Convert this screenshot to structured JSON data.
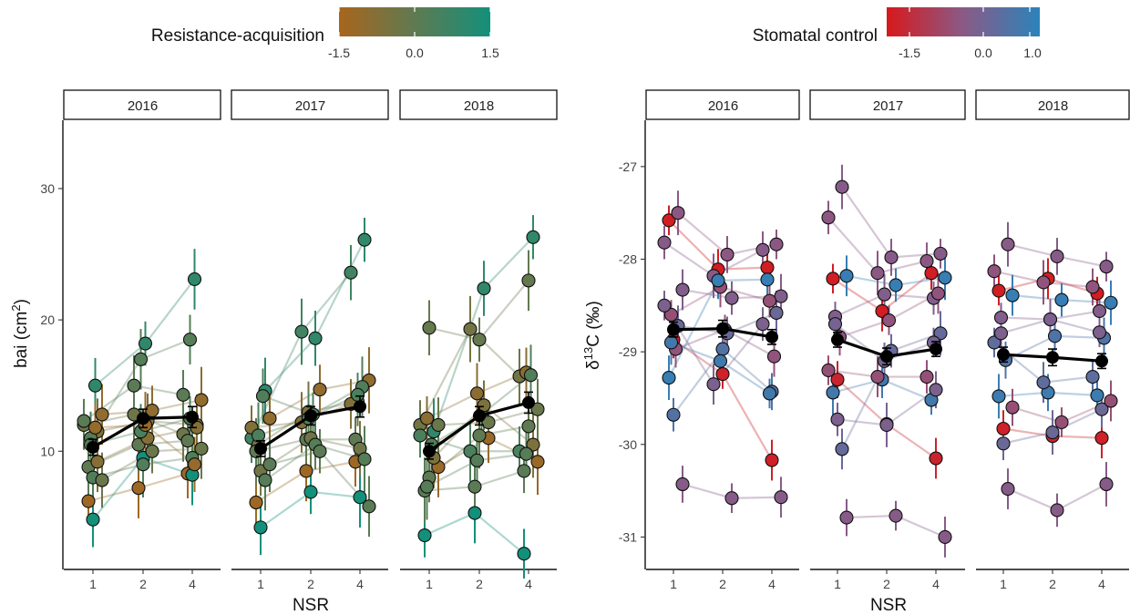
{
  "chart_data": [
    {
      "type": "scatter",
      "title": "",
      "xlabel": "NSR",
      "ylabel": "bai (cm²)",
      "ylabel_base": "bai (cm",
      "ylabel_sup": "2",
      "ylabel_close": ")",
      "x_ticks": [
        "1",
        "2",
        "4"
      ],
      "y_ticks": [
        10,
        20,
        30
      ],
      "ylim": [
        1,
        35.2
      ],
      "facets": [
        "2016",
        "2017",
        "2018"
      ],
      "legend": {
        "title": "Resistance-acquisition",
        "position": "top",
        "colors": [
          "#a8651d",
          "#5f7a52",
          "#13907a"
        ],
        "ticks": [
          "-1.5",
          "0.0",
          "1.5"
        ],
        "range": [
          -1.5,
          1.5
        ]
      },
      "means": {
        "2016": [
          10.3,
          12.5,
          12.6
        ],
        "2017": [
          10.2,
          12.7,
          13.4
        ],
        "2018": [
          10.0,
          12.7,
          13.7
        ]
      },
      "mean_errors": [
        0.6,
        0.7,
        0.8
      ],
      "series": {
        "2016": [
          {
            "v": [
              6.2,
              7.2,
              8.3
            ],
            "c": -1.3
          },
          {
            "v": [
              4.8,
              9.5,
              8.2
            ],
            "c": 1.5
          },
          {
            "v": [
              11.5,
              12.3,
              12.0
            ],
            "c": -0.5
          },
          {
            "v": [
              12.0,
              12.8,
              11.3
            ],
            "c": -0.3
          },
          {
            "v": [
              12.8,
              13.1,
              13.9
            ],
            "c": -1.0
          },
          {
            "v": [
              11.0,
              17.0,
              18.5
            ],
            "c": 0.2
          },
          {
            "v": [
              15.0,
              18.2,
              23.1
            ],
            "c": 0.9
          },
          {
            "v": [
              8.8,
              10.5,
              10.8
            ],
            "c": 0.0
          },
          {
            "v": [
              8.0,
              9.0,
              9.5
            ],
            "c": 0.3
          },
          {
            "v": [
              9.2,
              11.0,
              11.8
            ],
            "c": -0.8
          },
          {
            "v": [
              12.3,
              15.0,
              14.3
            ],
            "c": 0.1
          },
          {
            "v": [
              7.8,
              10.0,
              10.2
            ],
            "c": -0.2
          },
          {
            "v": [
              10.5,
              11.5,
              12.5
            ],
            "c": 0.4
          },
          {
            "v": [
              11.8,
              12.0,
              9.0
            ],
            "c": -1.1
          }
        ],
        "2017": [
          {
            "v": [
              6.1,
              8.5,
              9.2
            ],
            "c": -1.3
          },
          {
            "v": [
              4.2,
              6.9,
              6.5
            ],
            "c": 1.5
          },
          {
            "v": [
              14.6,
              18.6,
              26.1
            ],
            "c": 0.9
          },
          {
            "v": [
              11.0,
              19.1,
              23.6
            ],
            "c": 0.6
          },
          {
            "v": [
              12.5,
              14.7,
              15.4
            ],
            "c": -1.0
          },
          {
            "v": [
              10.5,
              13.0,
              13.8
            ],
            "c": -0.5
          },
          {
            "v": [
              14.2,
              12.8,
              14.9
            ],
            "c": 0.3
          },
          {
            "v": [
              10.0,
              10.9,
              10.9
            ],
            "c": 0.0
          },
          {
            "v": [
              8.5,
              11.0,
              10.2
            ],
            "c": -0.3
          },
          {
            "v": [
              7.8,
              10.5,
              9.4
            ],
            "c": 0.2
          },
          {
            "v": [
              11.8,
              12.2,
              13.6
            ],
            "c": -0.7
          },
          {
            "v": [
              9.0,
              10.0,
              5.8
            ],
            "c": 0.1
          },
          {
            "v": [
              11.2,
              12.5,
              14.3
            ],
            "c": 0.4
          }
        ],
        "2018": [
          {
            "v": [
              3.6,
              5.3,
              2.2
            ],
            "c": 1.5
          },
          {
            "v": [
              19.4,
              18.5,
              23.0
            ],
            "c": -0.1
          },
          {
            "v": [
              11.5,
              22.4,
              26.3
            ],
            "c": 0.9
          },
          {
            "v": [
              12.0,
              19.3,
              15.7
            ],
            "c": -0.4
          },
          {
            "v": [
              8.8,
              11.0,
              9.2
            ],
            "c": -1.2
          },
          {
            "v": [
              12.5,
              14.4,
              16.0
            ],
            "c": -0.9
          },
          {
            "v": [
              10.5,
              12.8,
              15.8
            ],
            "c": 0.3
          },
          {
            "v": [
              7.0,
              7.3,
              8.5
            ],
            "c": 0.1
          },
          {
            "v": [
              8.0,
              11.2,
              11.9
            ],
            "c": 0.0
          },
          {
            "v": [
              9.5,
              13.5,
              10.5
            ],
            "c": -0.6
          },
          {
            "v": [
              11.2,
              10.0,
              10.0
            ],
            "c": 0.4
          },
          {
            "v": [
              12.0,
              12.2,
              13.2
            ],
            "c": -0.2
          },
          {
            "v": [
              7.3,
              9.3,
              9.8
            ],
            "c": 0.2
          }
        ]
      }
    },
    {
      "type": "scatter",
      "title": "",
      "xlabel": "NSR",
      "ylabel": "δ13C (‰)",
      "ylabel_delta": "δ",
      "ylabel_sup": "13",
      "ylabel_rest": "C (‰)",
      "x_ticks": [
        "1",
        "2",
        "4"
      ],
      "y_ticks": [
        -27,
        -28,
        -29,
        -30,
        -31
      ],
      "ylim": [
        -31.35,
        -26.5
      ],
      "facets": [
        "2016",
        "2017",
        "2018"
      ],
      "legend": {
        "title": "Stomatal control",
        "position": "top",
        "colors": [
          "#d7191c",
          "#8a5a86",
          "#2b83ba"
        ],
        "ticks": [
          "-1.5",
          "0.0",
          "1.0"
        ],
        "range": [
          -2.0,
          1.3
        ]
      },
      "means": {
        "2016": [
          -28.76,
          -28.75,
          -28.84
        ],
        "2017": [
          -28.87,
          -29.05,
          -28.97
        ],
        "2018": [
          -29.03,
          -29.06,
          -29.1
        ]
      },
      "mean_errors": [
        0.08,
        0.09,
        0.08
      ],
      "series": {
        "2016": [
          {
            "v": [
              -27.58,
              -28.11,
              -28.09
            ],
            "c": -1.9
          },
          {
            "v": [
              -28.87,
              -29.24,
              -30.17
            ],
            "c": -1.8
          },
          {
            "v": [
              -27.5,
              -27.95,
              -27.84
            ],
            "c": -0.4
          },
          {
            "v": [
              -27.82,
              -28.18,
              -27.9
            ],
            "c": -0.3
          },
          {
            "v": [
              -28.33,
              -28.42,
              -28.4
            ],
            "c": -0.2
          },
          {
            "v": [
              -28.6,
              -28.3,
              -28.45
            ],
            "c": -0.6
          },
          {
            "v": [
              -28.97,
              -28.76,
              -29.05
            ],
            "c": -0.5
          },
          {
            "v": [
              -29.28,
              -28.23,
              -28.22
            ],
            "c": 1.1
          },
          {
            "v": [
              -29.68,
              -28.97,
              -29.43
            ],
            "c": 0.6
          },
          {
            "v": [
              -28.72,
              -28.8,
              -28.58
            ],
            "c": 0.2
          },
          {
            "v": [
              -28.5,
              -29.35,
              -28.7
            ],
            "c": -0.1
          },
          {
            "v": [
              -30.43,
              -30.58,
              -30.57
            ],
            "c": -0.3
          },
          {
            "v": [
              -28.9,
              -29.1,
              -29.45
            ],
            "c": 0.9
          }
        ],
        "2017": [
          {
            "v": [
              -28.21,
              -28.56,
              -28.15
            ],
            "c": -1.9
          },
          {
            "v": [
              -29.3,
              -29.78,
              -30.15
            ],
            "c": -1.7
          },
          {
            "v": [
              -27.22,
              -27.98,
              -27.94
            ],
            "c": -0.3
          },
          {
            "v": [
              -27.55,
              -28.15,
              -28.02
            ],
            "c": -0.4
          },
          {
            "v": [
              -28.18,
              -28.28,
              -28.2
            ],
            "c": 1.1
          },
          {
            "v": [
              -28.62,
              -28.38,
              -28.42
            ],
            "c": -0.2
          },
          {
            "v": [
              -28.84,
              -28.66,
              -28.37
            ],
            "c": -0.5
          },
          {
            "v": [
              -29.44,
              -29.3,
              -29.52
            ],
            "c": 0.9
          },
          {
            "v": [
              -29.73,
              -29.79,
              -29.41
            ],
            "c": -0.1
          },
          {
            "v": [
              -30.05,
              -28.99,
              -28.8
            ],
            "c": 0.3
          },
          {
            "v": [
              -29.2,
              -29.27,
              -29.27
            ],
            "c": -0.6
          },
          {
            "v": [
              -30.79,
              -30.77,
              -31.0
            ],
            "c": -0.3
          },
          {
            "v": [
              -28.7,
              -29.1,
              -28.9
            ],
            "c": 0.0
          }
        ],
        "2018": [
          {
            "v": [
              -28.34,
              -28.21,
              -28.37
            ],
            "c": -1.9
          },
          {
            "v": [
              -29.83,
              -29.91,
              -29.93
            ],
            "c": -1.8
          },
          {
            "v": [
              -27.84,
              -27.97,
              -28.08
            ],
            "c": -0.3
          },
          {
            "v": [
              -28.13,
              -28.25,
              -28.3
            ],
            "c": -0.5
          },
          {
            "v": [
              -28.39,
              -28.44,
              -28.47
            ],
            "c": 1.1
          },
          {
            "v": [
              -28.63,
              -28.65,
              -28.56
            ],
            "c": -0.2
          },
          {
            "v": [
              -29.09,
              -28.83,
              -28.85
            ],
            "c": 0.7
          },
          {
            "v": [
              -29.48,
              -29.44,
              -29.47
            ],
            "c": 1.0
          },
          {
            "v": [
              -29.99,
              -29.87,
              -29.62
            ],
            "c": 0.2
          },
          {
            "v": [
              -30.48,
              -30.71,
              -30.43
            ],
            "c": -0.3
          },
          {
            "v": [
              -28.9,
              -29.33,
              -29.27
            ],
            "c": 0.4
          },
          {
            "v": [
              -29.6,
              -29.76,
              -29.53
            ],
            "c": -0.6
          },
          {
            "v": [
              -28.8,
              -28.65,
              -28.79
            ],
            "c": -0.1
          }
        ]
      }
    }
  ]
}
